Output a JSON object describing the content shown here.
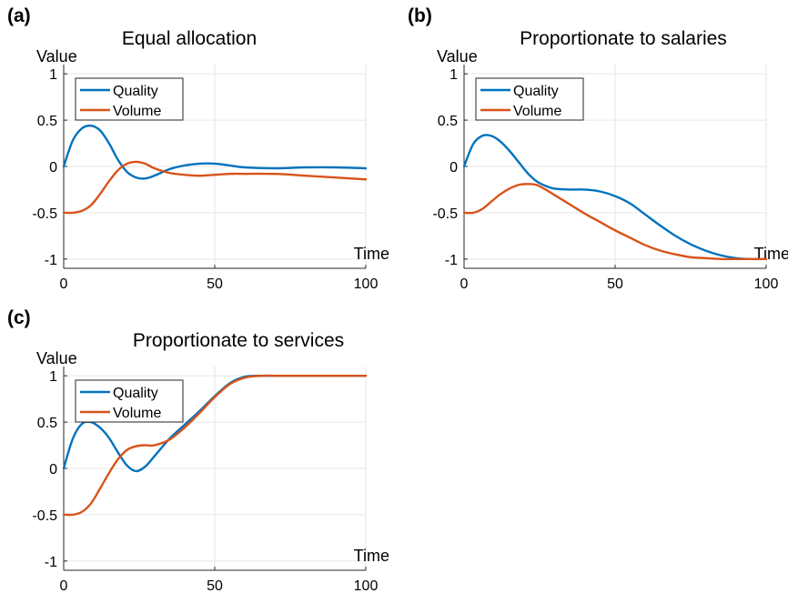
{
  "chart_data": [
    {
      "type": "line",
      "panel": "(a)",
      "title": "Equal allocation",
      "xlabel": "Time",
      "ylabel": "Value",
      "xlim": [
        0,
        100
      ],
      "ylim": [
        -1.1,
        1.1
      ],
      "xticks": [
        0,
        50,
        100
      ],
      "yticks": [
        1,
        0.5,
        0,
        -0.5,
        -1
      ],
      "ytick_labels": [
        "1",
        "0.5",
        "0",
        "-0.5",
        "-1"
      ],
      "grid": true,
      "legend_position": "top-left",
      "series": [
        {
          "name": "Quality",
          "color": "#0072bd",
          "x": [
            0,
            3,
            6,
            9,
            12,
            15,
            18,
            21,
            24,
            27,
            30,
            35,
            40,
            45,
            50,
            55,
            60,
            70,
            80,
            90,
            100
          ],
          "y": [
            0,
            0.28,
            0.41,
            0.44,
            0.39,
            0.25,
            0.07,
            -0.06,
            -0.12,
            -0.13,
            -0.1,
            -0.03,
            0.01,
            0.03,
            0.03,
            0.01,
            -0.01,
            -0.02,
            -0.01,
            -0.01,
            -0.02
          ]
        },
        {
          "name": "Volume",
          "color": "#d95319",
          "x": [
            0,
            3,
            6,
            9,
            12,
            15,
            18,
            21,
            24,
            27,
            30,
            35,
            40,
            45,
            50,
            55,
            60,
            70,
            80,
            90,
            100
          ],
          "y": [
            -0.5,
            -0.5,
            -0.48,
            -0.42,
            -0.3,
            -0.16,
            -0.04,
            0.03,
            0.05,
            0.03,
            -0.02,
            -0.07,
            -0.09,
            -0.1,
            -0.09,
            -0.08,
            -0.08,
            -0.08,
            -0.1,
            -0.12,
            -0.14
          ]
        }
      ]
    },
    {
      "type": "line",
      "panel": "(b)",
      "title": "Proportionate to salaries",
      "xlabel": "Time",
      "ylabel": "Value",
      "xlim": [
        0,
        100
      ],
      "ylim": [
        -1.1,
        1.1
      ],
      "xticks": [
        0,
        50,
        100
      ],
      "yticks": [
        1,
        0.5,
        0,
        -0.5,
        -1
      ],
      "ytick_labels": [
        "1",
        "0.5",
        "0",
        "-0.5",
        "-1"
      ],
      "grid": true,
      "legend_position": "top-left",
      "series": [
        {
          "name": "Quality",
          "color": "#0072bd",
          "x": [
            0,
            3,
            6,
            9,
            12,
            15,
            18,
            21,
            24,
            27,
            30,
            35,
            40,
            45,
            50,
            55,
            60,
            65,
            70,
            75,
            80,
            85,
            90,
            95,
            100
          ],
          "y": [
            0,
            0.24,
            0.33,
            0.33,
            0.27,
            0.17,
            0.05,
            -0.07,
            -0.16,
            -0.21,
            -0.24,
            -0.25,
            -0.25,
            -0.27,
            -0.32,
            -0.4,
            -0.52,
            -0.64,
            -0.75,
            -0.84,
            -0.91,
            -0.96,
            -0.99,
            -1.0,
            -1.0
          ]
        },
        {
          "name": "Volume",
          "color": "#d95319",
          "x": [
            0,
            3,
            6,
            9,
            12,
            15,
            18,
            21,
            24,
            27,
            30,
            35,
            40,
            45,
            50,
            55,
            60,
            65,
            70,
            75,
            80,
            85,
            90,
            95,
            100
          ],
          "y": [
            -0.5,
            -0.5,
            -0.46,
            -0.38,
            -0.3,
            -0.24,
            -0.2,
            -0.19,
            -0.2,
            -0.25,
            -0.31,
            -0.41,
            -0.51,
            -0.6,
            -0.69,
            -0.77,
            -0.85,
            -0.91,
            -0.95,
            -0.98,
            -0.99,
            -1.0,
            -1.0,
            -1.0,
            -1.0
          ]
        }
      ]
    },
    {
      "type": "line",
      "panel": "(c)",
      "title": "Proportionate to services",
      "xlabel": "Time",
      "ylabel": "Value",
      "xlim": [
        0,
        100
      ],
      "ylim": [
        -1.1,
        1.1
      ],
      "xticks": [
        0,
        50,
        100
      ],
      "yticks": [
        1,
        0.5,
        0,
        -0.5,
        -1
      ],
      "ytick_labels": [
        "1",
        "0.5",
        "0",
        "-0.5",
        "-1"
      ],
      "grid": true,
      "legend_position": "top-left",
      "series": [
        {
          "name": "Quality",
          "color": "#0072bd",
          "x": [
            0,
            3,
            6,
            9,
            12,
            15,
            18,
            21,
            24,
            27,
            30,
            35,
            40,
            45,
            50,
            55,
            60,
            65,
            70,
            80,
            90,
            100
          ],
          "y": [
            0,
            0.32,
            0.48,
            0.5,
            0.44,
            0.33,
            0.17,
            0.03,
            -0.03,
            0.02,
            0.13,
            0.32,
            0.47,
            0.62,
            0.78,
            0.92,
            0.99,
            1.0,
            1.0,
            1.0,
            1.0,
            1.0
          ]
        },
        {
          "name": "Volume",
          "color": "#d95319",
          "x": [
            0,
            3,
            6,
            9,
            12,
            15,
            18,
            21,
            24,
            27,
            30,
            35,
            40,
            45,
            50,
            55,
            60,
            65,
            70,
            80,
            90,
            100
          ],
          "y": [
            -0.5,
            -0.5,
            -0.47,
            -0.38,
            -0.22,
            -0.05,
            0.1,
            0.2,
            0.24,
            0.25,
            0.25,
            0.31,
            0.44,
            0.6,
            0.77,
            0.91,
            0.98,
            1.0,
            1.0,
            1.0,
            1.0,
            1.0
          ]
        }
      ]
    }
  ]
}
